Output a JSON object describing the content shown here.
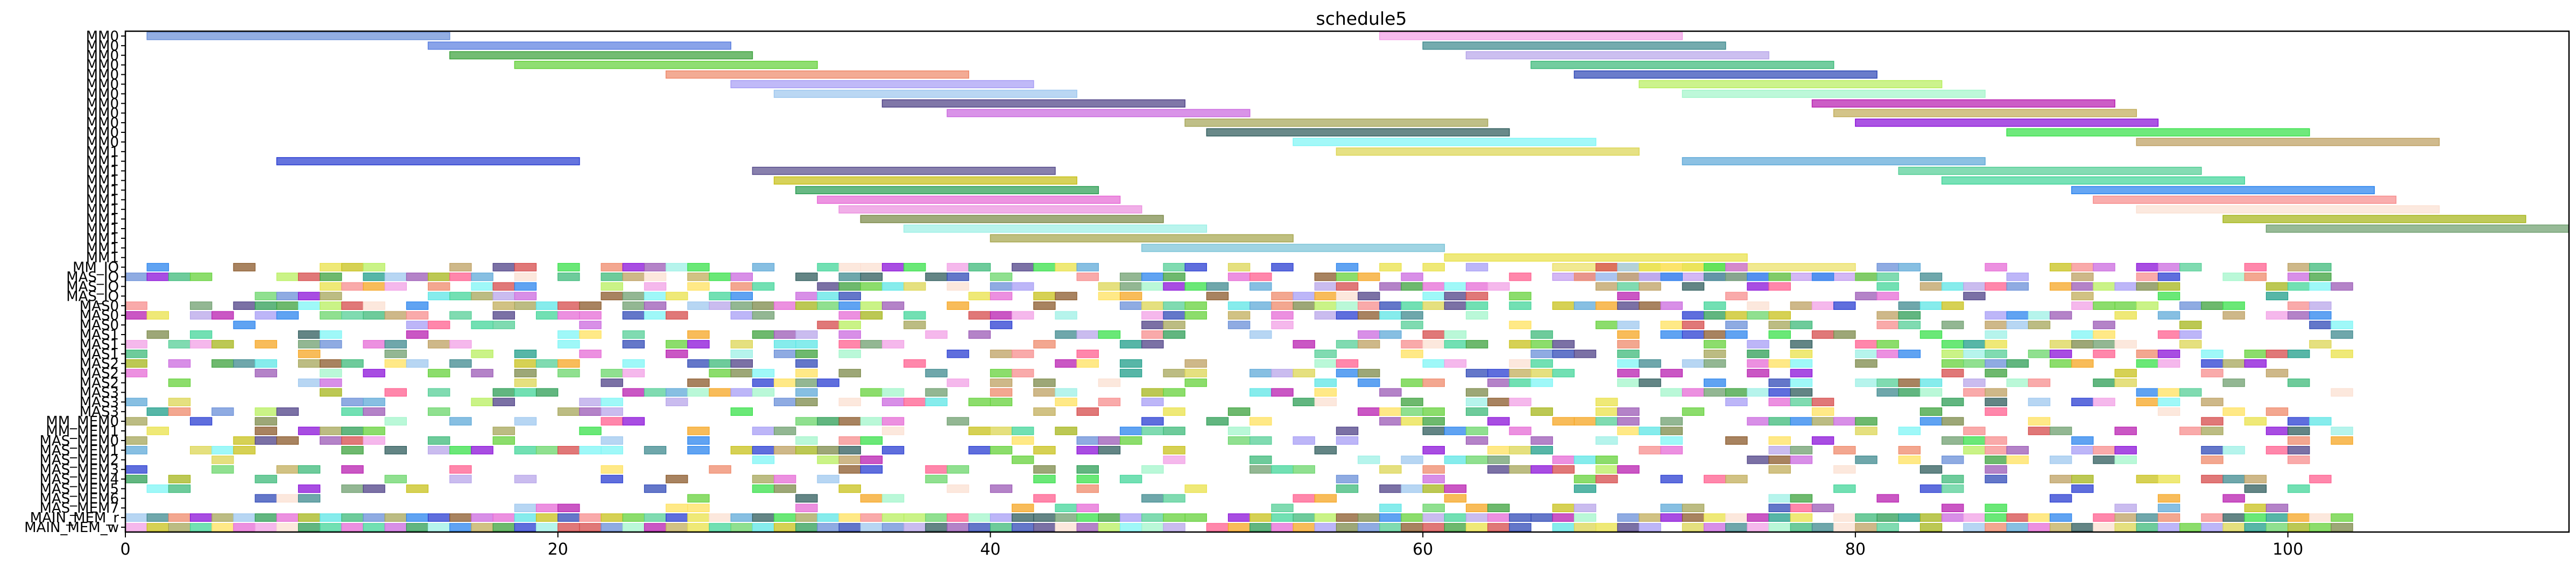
{
  "chart_data": {
    "type": "gantt",
    "title": "schedule5",
    "xlabel": "",
    "ylabel": "",
    "xlim": [
      0,
      113
    ],
    "x_ticks": [
      0,
      20,
      40,
      60,
      80,
      100
    ],
    "grid": false,
    "legend": "none",
    "rows": [
      "MM0",
      "MM0",
      "MM0",
      "MM0",
      "MM0",
      "MM0",
      "MM0",
      "MM0",
      "MM0",
      "MM0",
      "MM0",
      "MM0",
      "MM1",
      "MM1",
      "MM1",
      "MM1",
      "MM1",
      "MM1",
      "MM1",
      "MM1",
      "MM1",
      "MM1",
      "MM1",
      "MM1",
      "MM_IO",
      "MAS_IO",
      "MAS_IO",
      "MAS_IO",
      "MAS0",
      "MAS0",
      "MAS0",
      "MAS1",
      "MAS1",
      "MAS1",
      "MAS2",
      "MAS2",
      "MAS2",
      "MAS3",
      "MAS3",
      "MAS3",
      "MM_MEM0",
      "MM_MEM1",
      "MAS_MEM0",
      "MAS_MEM1",
      "MAS_MEM2",
      "MAS_MEM3",
      "MAS_MEM4",
      "MAS_MEM5",
      "MAS_MEM6",
      "MAS_MEM7",
      "MAIN_MEM_r",
      "MAIN_MEM_w"
    ],
    "tasks": [
      {
        "row": 0,
        "start": 1,
        "end": 15,
        "color": "#6a8fd8"
      },
      {
        "row": 0,
        "start": 58,
        "end": 72,
        "color": "#f2a0e6"
      },
      {
        "row": 1,
        "start": 14,
        "end": 28,
        "color": "#5b7fe0"
      },
      {
        "row": 1,
        "start": 60,
        "end": 74,
        "color": "#3f8a8f"
      },
      {
        "row": 2,
        "start": 15,
        "end": 29,
        "color": "#3da23d"
      },
      {
        "row": 2,
        "start": 62,
        "end": 76,
        "color": "#b8a6ea"
      },
      {
        "row": 3,
        "start": 18,
        "end": 32,
        "color": "#65d13b"
      },
      {
        "row": 3,
        "start": 65,
        "end": 79,
        "color": "#3dba7a"
      },
      {
        "row": 4,
        "start": 25,
        "end": 39,
        "color": "#ef8a6b"
      },
      {
        "row": 4,
        "start": 67,
        "end": 81,
        "color": "#3049b7"
      },
      {
        "row": 5,
        "start": 28,
        "end": 42,
        "color": "#a79ef5"
      },
      {
        "row": 5,
        "start": 70,
        "end": 84,
        "color": "#b8ef5f"
      },
      {
        "row": 6,
        "start": 30,
        "end": 44,
        "color": "#9fc8ef"
      },
      {
        "row": 6,
        "start": 72,
        "end": 86,
        "color": "#a3f5cb"
      },
      {
        "row": 7,
        "start": 35,
        "end": 49,
        "color": "#4f4287"
      },
      {
        "row": 7,
        "start": 78,
        "end": 92,
        "color": "#b81fb0"
      },
      {
        "row": 8,
        "start": 38,
        "end": 52,
        "color": "#cb6adf"
      },
      {
        "row": 8,
        "start": 79,
        "end": 93,
        "color": "#c2ad5b"
      },
      {
        "row": 9,
        "start": 49,
        "end": 63,
        "color": "#a6a659"
      },
      {
        "row": 9,
        "start": 80,
        "end": 94,
        "color": "#8b12d8"
      },
      {
        "row": 10,
        "start": 50,
        "end": 64,
        "color": "#2f5c5c"
      },
      {
        "row": 10,
        "start": 87,
        "end": 101,
        "color": "#38e04a"
      },
      {
        "row": 11,
        "start": 54,
        "end": 68,
        "color": "#7ff5f5"
      },
      {
        "row": 11,
        "start": 93,
        "end": 107,
        "color": "#bea061"
      },
      {
        "row": 12,
        "start": 56,
        "end": 70,
        "color": "#dcd654"
      },
      {
        "row": 13,
        "start": 7,
        "end": 21,
        "color": "#2a3ed1"
      },
      {
        "row": 13,
        "start": 72,
        "end": 86,
        "color": "#5fa9d8"
      },
      {
        "row": 14,
        "start": 29,
        "end": 43,
        "color": "#5a4f8e"
      },
      {
        "row": 14,
        "start": 82,
        "end": 96,
        "color": "#55cf97"
      },
      {
        "row": 15,
        "start": 30,
        "end": 44,
        "color": "#c8c11b"
      },
      {
        "row": 15,
        "start": 84,
        "end": 98,
        "color": "#43d59a"
      },
      {
        "row": 16,
        "start": 31,
        "end": 45,
        "color": "#2e9e55"
      },
      {
        "row": 16,
        "start": 90,
        "end": 104,
        "color": "#2b84ee"
      },
      {
        "row": 17,
        "start": 32,
        "end": 46,
        "color": "#e66bd6"
      },
      {
        "row": 17,
        "start": 91,
        "end": 105,
        "color": "#f78e8e"
      },
      {
        "row": 18,
        "start": 33,
        "end": 47,
        "color": "#ec90df"
      },
      {
        "row": 18,
        "start": 93,
        "end": 107,
        "color": "#fbe0d2"
      },
      {
        "row": 19,
        "start": 34,
        "end": 48,
        "color": "#7c8a4a"
      },
      {
        "row": 19,
        "start": 97,
        "end": 111,
        "color": "#a6b61b"
      },
      {
        "row": 20,
        "start": 36,
        "end": 50,
        "color": "#9ef0e6"
      },
      {
        "row": 20,
        "start": 99,
        "end": 113,
        "color": "#6f9f6f"
      },
      {
        "row": 21,
        "start": 40,
        "end": 54,
        "color": "#a6a64e"
      },
      {
        "row": 22,
        "start": 47,
        "end": 61,
        "color": "#7cc4d8"
      },
      {
        "row": 23,
        "start": 61,
        "end": 75,
        "color": "#e9e14a"
      },
      {
        "row": 24,
        "start": 66,
        "end": 80,
        "color": "#ece066"
      },
      {
        "row": 25,
        "start": 66,
        "end": 81,
        "color": "#c39df0"
      }
    ],
    "slot_rows": [
      24,
      25,
      26,
      27,
      28,
      29,
      30,
      31,
      32,
      33,
      34,
      35,
      36,
      37,
      38,
      39,
      40,
      41,
      42,
      43,
      44,
      45,
      46,
      47,
      48,
      49,
      50,
      51
    ],
    "slot_density": [
      0.55,
      0.62,
      0.55,
      0.45,
      0.6,
      0.5,
      0.4,
      0.38,
      0.42,
      0.36,
      0.42,
      0.4,
      0.36,
      0.4,
      0.38,
      0.3,
      0.4,
      0.4,
      0.45,
      0.42,
      0.28,
      0.24,
      0.3,
      0.22,
      0.2,
      0.25,
      0.95,
      0.95
    ],
    "slot_range": [
      0,
      103
    ],
    "palette": [
      "#6a8fd8",
      "#f2a0e6",
      "#3f8a8f",
      "#b8a6ea",
      "#3da23d",
      "#65d13b",
      "#3dba7a",
      "#ef8a6b",
      "#3049b7",
      "#a79ef5",
      "#b8ef5f",
      "#9fc8ef",
      "#a3f5cb",
      "#4f4287",
      "#b81fb0",
      "#cb6adf",
      "#c2ad5b",
      "#a6a659",
      "#8b12d8",
      "#2f5c5c",
      "#38e04a",
      "#7ff5f5",
      "#bea061",
      "#dcd654",
      "#2a3ed1",
      "#5fa9d8",
      "#55cf97",
      "#c8c11b",
      "#43d59a",
      "#2e9e55",
      "#2b84ee",
      "#e66bd6",
      "#f78e8e",
      "#fbe0d2",
      "#7c8a4a",
      "#a6b61b",
      "#9ef0e6",
      "#6f9f6f",
      "#e9e14a",
      "#ff5f8f",
      "#5ee6e6",
      "#ffe25f",
      "#8b5a2b",
      "#f5a623",
      "#d64b4b",
      "#6bd66b",
      "#9b59b6",
      "#1f9e89"
    ]
  }
}
